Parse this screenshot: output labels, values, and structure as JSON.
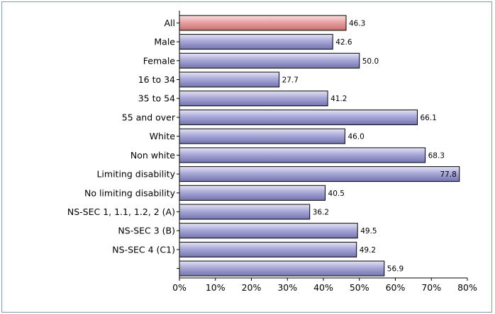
{
  "chart_data": {
    "type": "bar",
    "orientation": "horizontal",
    "title": "",
    "xlabel": "",
    "ylabel": "",
    "categories": [
      "All",
      "Male",
      "Female",
      "16 to 34",
      "35 to 54",
      "55 and over",
      "White",
      "Non white",
      "Limiting disability",
      "No limiting disability",
      "NS-SEC 1, 1.1, 1.2, 2 (A)",
      "NS-SEC 3 (B)",
      "NS-SEC 4 (C1)",
      ""
    ],
    "values": [
      46.3,
      42.6,
      50.0,
      27.7,
      41.2,
      66.1,
      46.0,
      68.3,
      77.8,
      40.5,
      36.2,
      49.5,
      49.2,
      56.9
    ],
    "value_labels": [
      "46.3",
      "42.6",
      "50.0",
      "27.7",
      "41.2",
      "66.1",
      "46.0",
      "68.3",
      "77.8",
      "40.5",
      "36.2",
      "49.5",
      "49.2",
      "56.9"
    ],
    "xlim": [
      0,
      80
    ],
    "xticks": [
      "0%",
      "10%",
      "20%",
      "30%",
      "40%",
      "50%",
      "60%",
      "70%",
      "80%"
    ],
    "grid": false,
    "legend": "none",
    "colors": {
      "highlight_bar": "#e8a0a0",
      "bar": "#9f9fcf",
      "bar_outline": "#000000"
    }
  }
}
